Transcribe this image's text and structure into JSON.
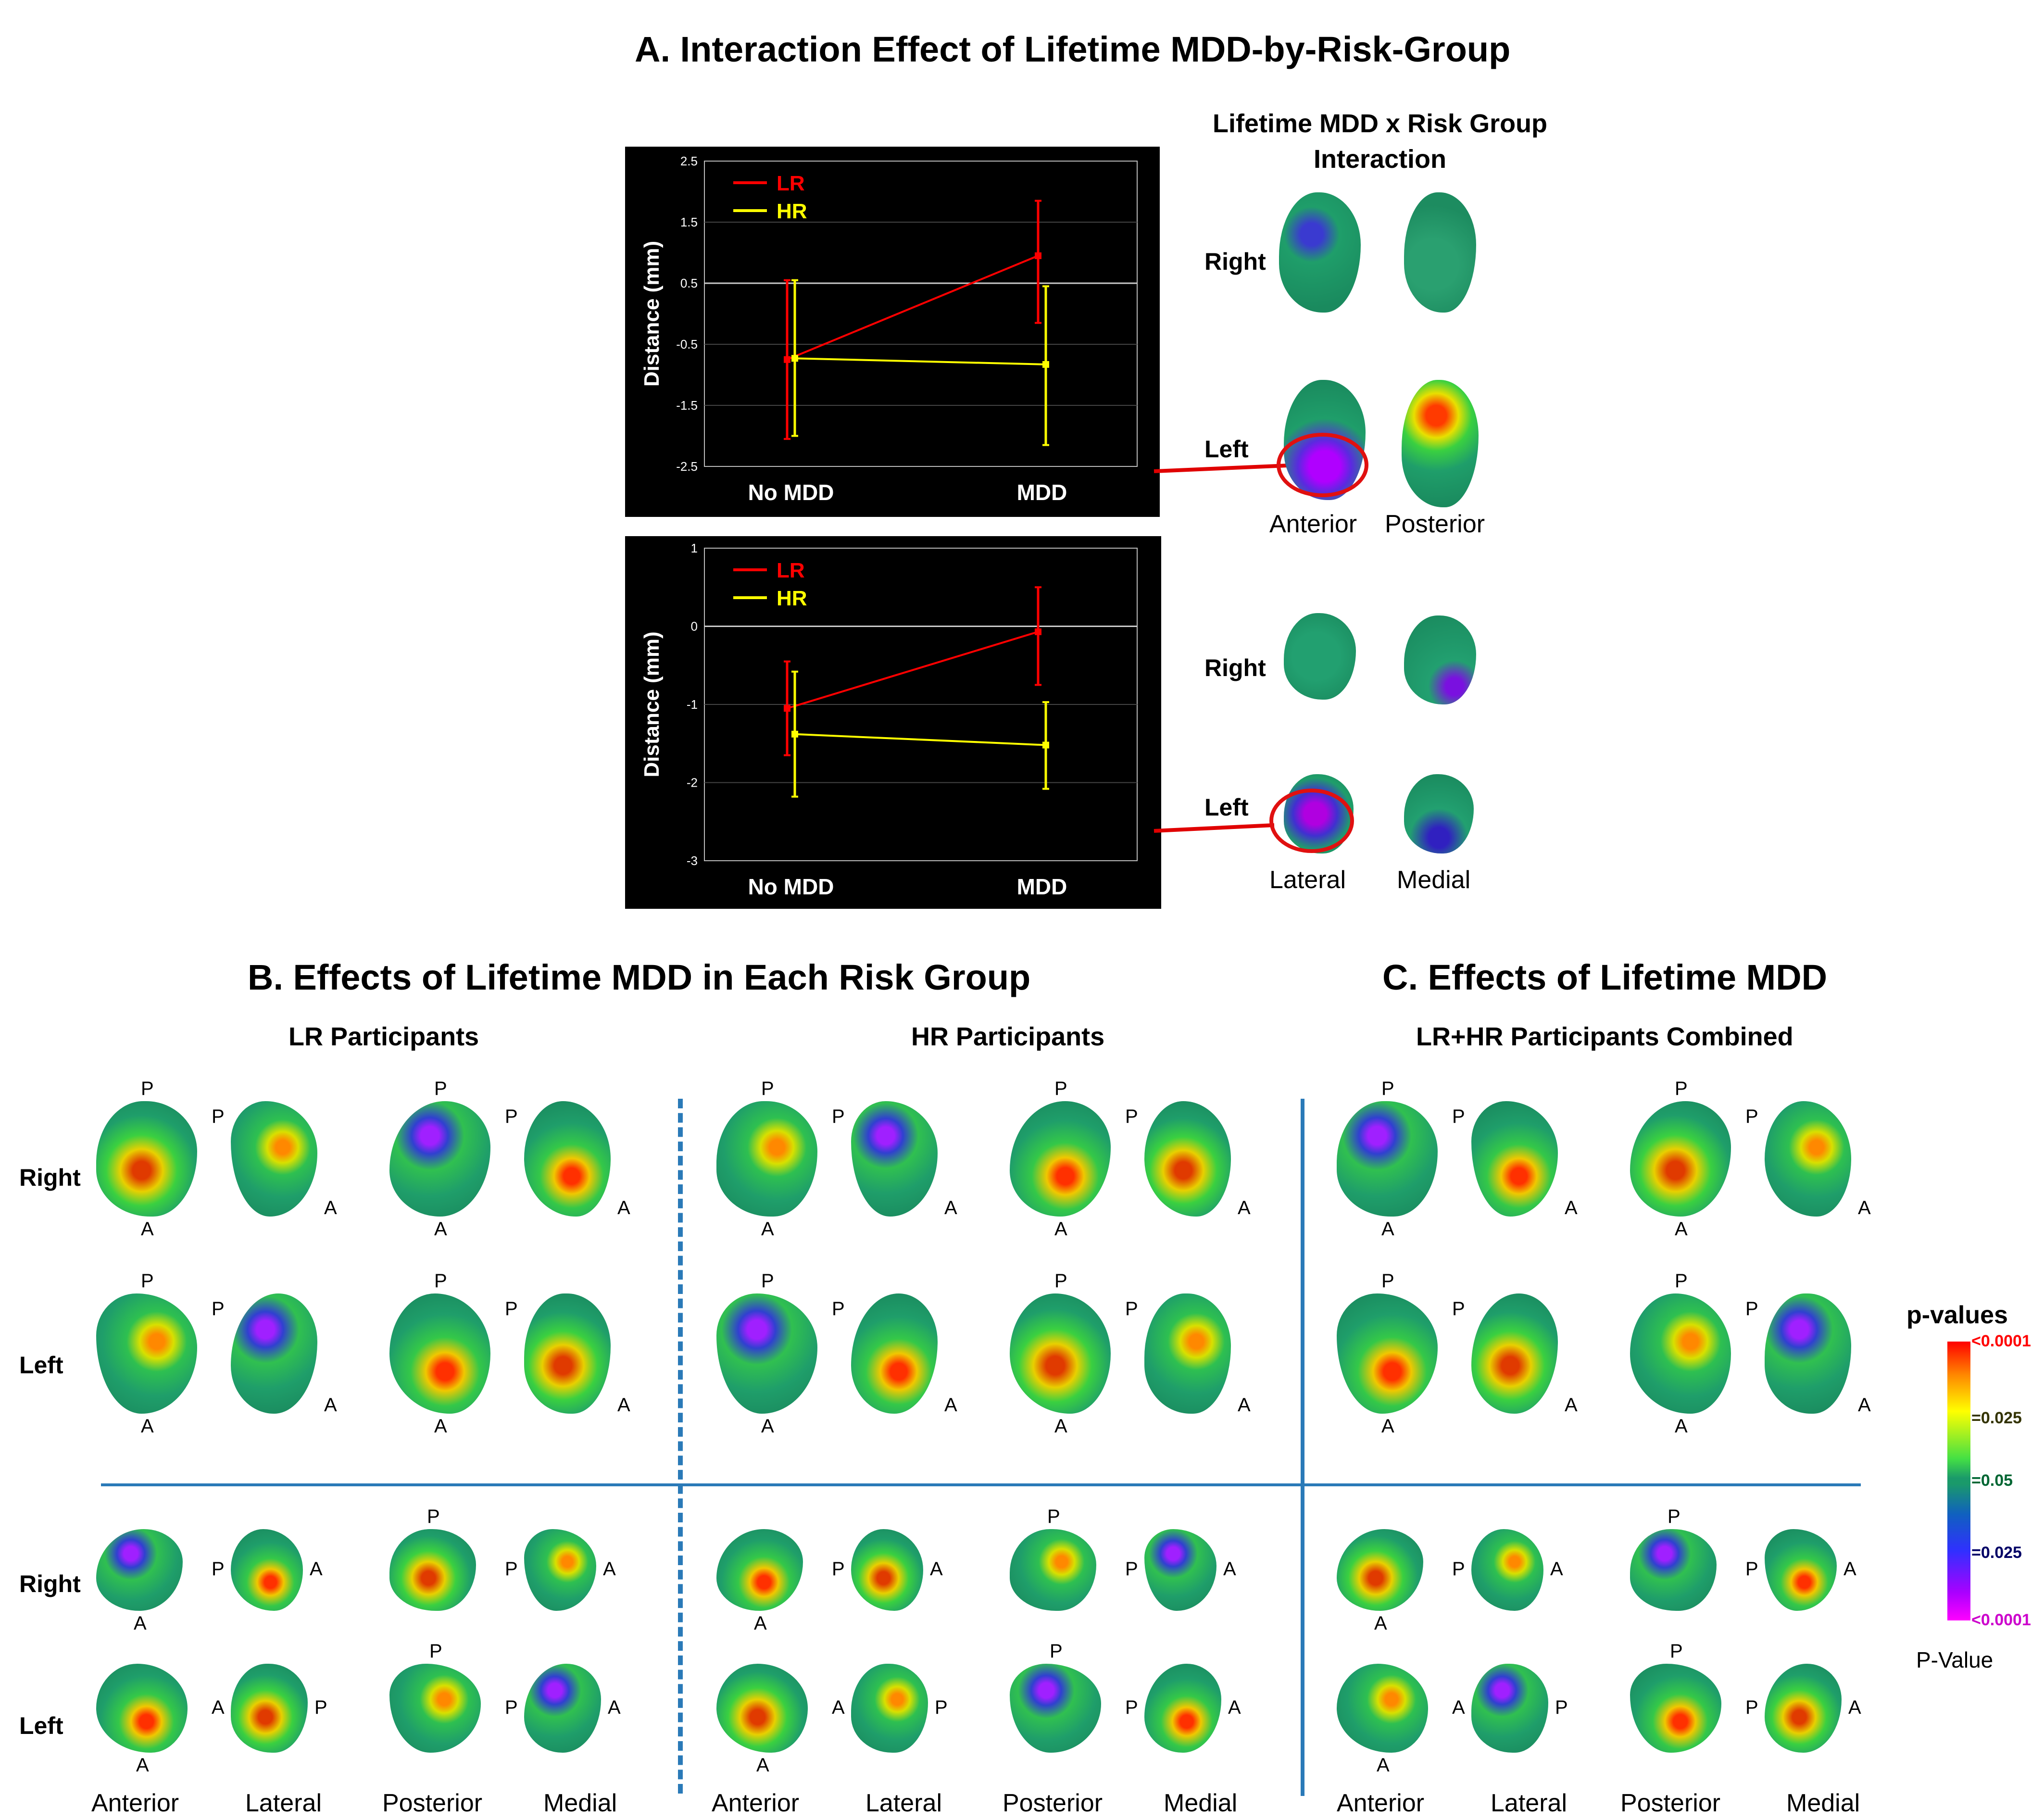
{
  "titles": {
    "a": "A. Interaction Effect of Lifetime MDD-by-Risk-Group",
    "b": "B. Effects of Lifetime MDD in Each Risk Group",
    "c": "C. Effects of Lifetime MDD"
  },
  "interaction_label": [
    "Lifetime MDD x Risk Group",
    "Interaction"
  ],
  "subtitles": {
    "lr": "LR Participants",
    "hr": "HR Participants",
    "combined": "LR+HR Participants Combined"
  },
  "sides": {
    "right": "Right",
    "left": "Left"
  },
  "views": {
    "anterior": "Anterior",
    "posterior": "Posterior",
    "lateral": "Lateral",
    "medial": "Medial"
  },
  "orient": {
    "p": "P",
    "a": "A"
  },
  "colorbar": {
    "title": "p-values",
    "labels": [
      "<0.0001",
      "=0.025",
      "=0.05",
      "=0.025",
      "<0.0001"
    ],
    "label_colors": [
      "#ff0000",
      "#333300",
      "#006633",
      "#000066",
      "#cc00cc"
    ],
    "caption": "P-Value"
  },
  "chart_data": [
    {
      "type": "line",
      "categories": [
        "No MDD",
        "MDD"
      ],
      "ylabel": "Distance (mm)",
      "ylim": [
        -2.5,
        2.5
      ],
      "yticks": [
        "2.5",
        "1.5",
        "0.5",
        "-0.5",
        "-1.5",
        "-2.5"
      ],
      "series": [
        {
          "name": "LR",
          "color": "#ff0000",
          "values": [
            -0.75,
            0.95
          ],
          "err_low": [
            -2.05,
            -0.15
          ],
          "err_high": [
            0.55,
            1.85
          ]
        },
        {
          "name": "HR",
          "color": "#ffff00",
          "values": [
            -0.73,
            -0.83
          ],
          "err_low": [
            -2.0,
            -2.15
          ],
          "err_high": [
            0.55,
            0.45
          ]
        }
      ]
    },
    {
      "type": "line",
      "categories": [
        "No MDD",
        "MDD"
      ],
      "ylabel": "Distance (mm)",
      "ylim": [
        -3,
        1
      ],
      "yticks": [
        "1",
        "0",
        "-1",
        "-2",
        "-3"
      ],
      "series": [
        {
          "name": "LR",
          "color": "#ff0000",
          "values": [
            -1.05,
            -0.07
          ],
          "err_low": [
            -1.65,
            -0.75
          ],
          "err_high": [
            -0.45,
            0.5
          ]
        },
        {
          "name": "HR",
          "color": "#ffff00",
          "values": [
            -1.38,
            -1.52
          ],
          "err_low": [
            -2.18,
            -2.08
          ],
          "err_high": [
            -0.58,
            -0.97
          ]
        }
      ]
    }
  ]
}
